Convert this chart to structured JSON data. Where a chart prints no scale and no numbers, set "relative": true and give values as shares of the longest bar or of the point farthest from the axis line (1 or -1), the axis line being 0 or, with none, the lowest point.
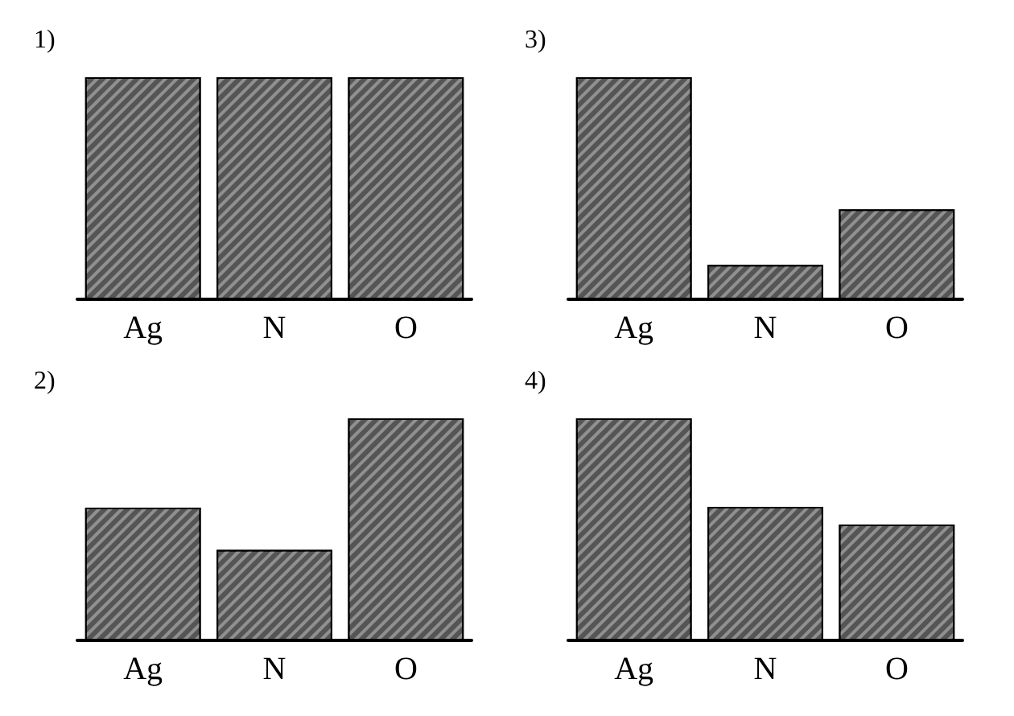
{
  "chart_data": [
    {
      "type": "bar",
      "title": "1)",
      "categories": [
        "Ag",
        "N",
        "O"
      ],
      "values": [
        1,
        1,
        1
      ],
      "color": "#555555",
      "relative": true,
      "grid": false
    },
    {
      "type": "bar",
      "title": "3)",
      "categories": [
        "Ag",
        "N",
        "O"
      ],
      "values": [
        1,
        0.155,
        0.405
      ],
      "color": "#555555",
      "relative": true,
      "grid": false
    },
    {
      "type": "bar",
      "title": "2)",
      "categories": [
        "Ag",
        "N",
        "O"
      ],
      "values": [
        0.598,
        0.408,
        1
      ],
      "color": "#555555",
      "relative": true,
      "grid": false
    },
    {
      "type": "bar",
      "title": "4)",
      "categories": [
        "Ag",
        "N",
        "O"
      ],
      "values": [
        1,
        0.601,
        0.522
      ],
      "color": "#555555",
      "relative": true,
      "grid": false
    }
  ]
}
